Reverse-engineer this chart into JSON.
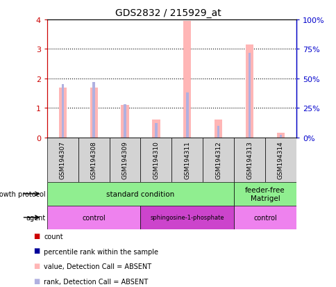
{
  "title": "GDS2832 / 215929_at",
  "samples": [
    "GSM194307",
    "GSM194308",
    "GSM194309",
    "GSM194310",
    "GSM194311",
    "GSM194312",
    "GSM194313",
    "GSM194314"
  ],
  "value_absent": [
    1.7,
    1.7,
    1.1,
    0.6,
    3.95,
    0.6,
    3.15,
    0.15
  ],
  "rank_absent": [
    45.0,
    47.0,
    28.0,
    12.0,
    38.0,
    10.0,
    72.0,
    2.0
  ],
  "ylim_left": [
    0,
    4
  ],
  "ylim_right": [
    0,
    100
  ],
  "yticks_left": [
    0,
    1,
    2,
    3,
    4
  ],
  "yticks_right": [
    0,
    25,
    50,
    75,
    100
  ],
  "ytick_labels_left": [
    "0",
    "1",
    "2",
    "3",
    "4"
  ],
  "ytick_labels_right": [
    "0%",
    "25%",
    "50%",
    "75%",
    "100%"
  ],
  "growth_protocol_groups": [
    {
      "label": "standard condition",
      "start": 0,
      "end": 6,
      "color": "#90ee90"
    },
    {
      "label": "feeder-free\nMatrigel",
      "start": 6,
      "end": 8,
      "color": "#90ee90"
    }
  ],
  "agent_groups": [
    {
      "label": "control",
      "start": 0,
      "end": 3,
      "color": "#ee82ee"
    },
    {
      "label": "sphingosine-1-phosphate",
      "start": 3,
      "end": 6,
      "color": "#cc44cc"
    },
    {
      "label": "control",
      "start": 6,
      "end": 8,
      "color": "#ee82ee"
    }
  ],
  "value_absent_color": "#ffb6b6",
  "rank_absent_color": "#b0b0e0",
  "legend_items": [
    {
      "color": "#cc0000",
      "label": "count",
      "marker": "s"
    },
    {
      "color": "#000099",
      "label": "percentile rank within the sample",
      "marker": "s"
    },
    {
      "color": "#ffb6b6",
      "label": "value, Detection Call = ABSENT",
      "marker": "s"
    },
    {
      "color": "#b0b0e0",
      "label": "rank, Detection Call = ABSENT",
      "marker": "s"
    }
  ],
  "sample_box_color": "#d3d3d3",
  "left_axis_color": "#cc0000",
  "right_axis_color": "#0000cc",
  "pink_bar_width": 0.25,
  "blue_bar_width": 0.08
}
